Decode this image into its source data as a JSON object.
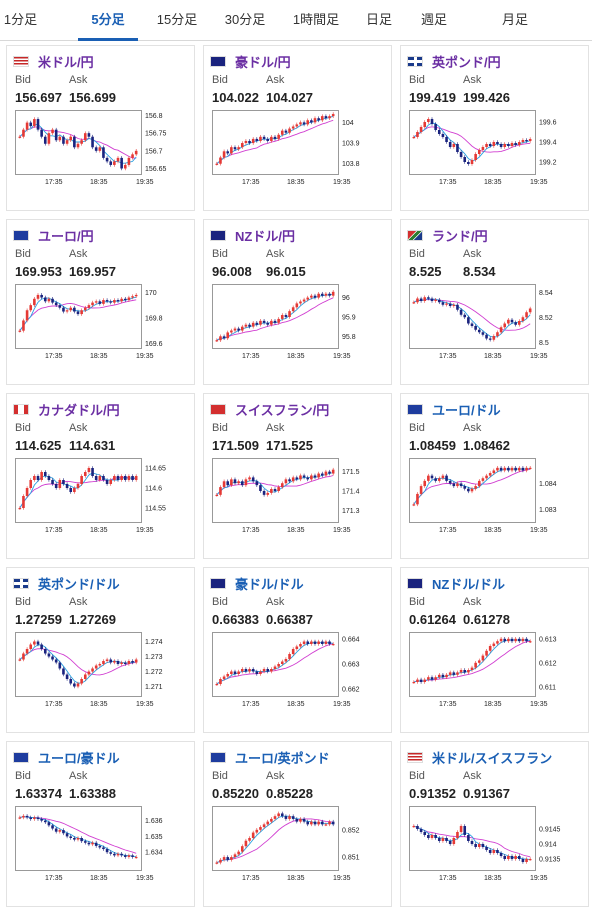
{
  "tabs": [
    {
      "label": "1分足",
      "active": false
    },
    {
      "label": "5分足",
      "active": true
    },
    {
      "label": "15分足",
      "active": false
    },
    {
      "label": "30分足",
      "active": false
    },
    {
      "label": "1時間足",
      "active": false
    },
    {
      "label": "日足",
      "active": false
    },
    {
      "label": "週足",
      "active": false
    },
    {
      "label": "月足",
      "active": false
    }
  ],
  "labels": {
    "bid": "Bid",
    "ask": "Ask"
  },
  "colors": {
    "up": "#e53935",
    "down": "#1a237e",
    "ma_short": "#29a0e0",
    "ma_long": "#d13fd1",
    "pair_purple": "#6b2fa3",
    "pair_blue": "#1a5fb4",
    "active_tab": "#1a5fb4"
  },
  "cards": [
    {
      "pair": "米ドル/円",
      "bid": "156.697",
      "ask": "156.699",
      "flag": "us-flag",
      "y_ticks": [
        "156.8",
        "156.75",
        "156.7",
        "156.65"
      ],
      "x_ticks": [
        "17:35",
        "18:35",
        "19:35"
      ],
      "chart_data": {
        "type": "candlestick",
        "ylim": [
          156.64,
          156.81
        ],
        "close": [
          156.74,
          156.76,
          156.78,
          156.77,
          156.79,
          156.76,
          156.74,
          156.72,
          156.75,
          156.76,
          156.73,
          156.74,
          156.72,
          156.73,
          156.74,
          156.71,
          156.72,
          156.73,
          156.75,
          156.74,
          156.71,
          156.7,
          156.71,
          156.68,
          156.67,
          156.66,
          156.67,
          156.68,
          156.65,
          156.66,
          156.68,
          156.69,
          156.7
        ]
      }
    },
    {
      "pair": "豪ドル/円",
      "bid": "104.022",
      "ask": "104.027",
      "flag": "au-flag",
      "y_ticks": [
        "104",
        "103.9",
        "103.8"
      ],
      "x_ticks": [
        "17:35",
        "18:35",
        "19:35"
      ],
      "chart_data": {
        "type": "candlestick",
        "ylim": [
          103.76,
          104.05
        ],
        "close": [
          103.8,
          103.83,
          103.86,
          103.85,
          103.88,
          103.87,
          103.88,
          103.9,
          103.91,
          103.9,
          103.92,
          103.91,
          103.93,
          103.92,
          103.91,
          103.93,
          103.92,
          103.94,
          103.96,
          103.95,
          103.97,
          103.98,
          103.99,
          104.0,
          103.99,
          104.01,
          104.0,
          104.02,
          104.01,
          104.03,
          104.02,
          104.03,
          104.04
        ]
      }
    },
    {
      "pair": "英ポンド/円",
      "bid": "199.419",
      "ask": "199.426",
      "flag": "gb-flag",
      "y_ticks": [
        "199.6",
        "199.4",
        "199.2"
      ],
      "x_ticks": [
        "17:35",
        "18:35",
        "19:35"
      ],
      "chart_data": {
        "type": "candlestick",
        "ylim": [
          199.1,
          199.7
        ],
        "close": [
          199.45,
          199.5,
          199.55,
          199.6,
          199.63,
          199.58,
          199.52,
          199.48,
          199.45,
          199.4,
          199.35,
          199.38,
          199.3,
          199.25,
          199.2,
          199.18,
          199.22,
          199.28,
          199.32,
          199.35,
          199.38,
          199.36,
          199.4,
          199.38,
          199.35,
          199.38,
          199.36,
          199.39,
          199.37,
          199.4,
          199.42,
          199.41,
          199.43
        ]
      }
    },
    {
      "pair": "ユーロ/円",
      "bid": "169.953",
      "ask": "169.957",
      "flag": "eu-flag",
      "y_ticks": [
        "170",
        "169.8",
        "169.6"
      ],
      "x_ticks": [
        "17:35",
        "18:35",
        "19:35"
      ],
      "chart_data": {
        "type": "candlestick",
        "ylim": [
          169.58,
          170.05
        ],
        "close": [
          169.7,
          169.78,
          169.86,
          169.9,
          169.95,
          169.98,
          169.96,
          169.93,
          169.95,
          169.92,
          169.9,
          169.88,
          169.85,
          169.86,
          169.88,
          169.85,
          169.83,
          169.86,
          169.88,
          169.9,
          169.92,
          169.93,
          169.91,
          169.94,
          169.93,
          169.92,
          169.94,
          169.93,
          169.95,
          169.94,
          169.96,
          169.97,
          169.98
        ]
      }
    },
    {
      "pair": "NZドル/円",
      "bid": "96.008",
      "ask": "96.015",
      "flag": "nz-flag",
      "y_ticks": [
        "96",
        "95.9",
        "95.8"
      ],
      "x_ticks": [
        "17:35",
        "18:35",
        "19:35"
      ],
      "chart_data": {
        "type": "candlestick",
        "ylim": [
          95.75,
          96.06
        ],
        "close": [
          95.78,
          95.8,
          95.79,
          95.82,
          95.83,
          95.84,
          95.83,
          95.85,
          95.86,
          95.85,
          95.87,
          95.86,
          95.88,
          95.87,
          95.86,
          95.88,
          95.87,
          95.89,
          95.91,
          95.9,
          95.93,
          95.95,
          95.97,
          95.98,
          95.99,
          96.0,
          96.01,
          96.0,
          96.02,
          96.01,
          96.02,
          96.01,
          96.03
        ]
      }
    },
    {
      "pair": "ランド/円",
      "bid": "8.525",
      "ask": "8.534",
      "flag": "za-flag",
      "y_ticks": [
        "8.54",
        "8.52",
        "8.5"
      ],
      "x_ticks": [
        "17:35",
        "18:35",
        "19:35"
      ],
      "chart_data": {
        "type": "candlestick",
        "ylim": [
          8.497,
          8.545
        ],
        "close": [
          8.532,
          8.535,
          8.533,
          8.536,
          8.535,
          8.533,
          8.534,
          8.532,
          8.53,
          8.531,
          8.529,
          8.53,
          8.526,
          8.522,
          8.52,
          8.515,
          8.513,
          8.51,
          8.508,
          8.506,
          8.503,
          8.502,
          8.505,
          8.508,
          8.512,
          8.515,
          8.518,
          8.516,
          8.514,
          8.517,
          8.52,
          8.524,
          8.527
        ]
      }
    },
    {
      "pair": "カナダドル/円",
      "bid": "114.625",
      "ask": "114.631",
      "flag": "ca-flag",
      "y_ticks": [
        "114.65",
        "114.6",
        "114.55"
      ],
      "x_ticks": [
        "17:35",
        "18:35",
        "19:35"
      ],
      "chart_data": {
        "type": "candlestick",
        "ylim": [
          114.52,
          114.67
        ],
        "close": [
          114.55,
          114.58,
          114.6,
          114.62,
          114.63,
          114.62,
          114.64,
          114.63,
          114.62,
          114.61,
          114.6,
          114.62,
          114.61,
          114.6,
          114.59,
          114.6,
          114.61,
          114.63,
          114.64,
          114.65,
          114.63,
          114.62,
          114.63,
          114.62,
          114.61,
          114.62,
          114.63,
          114.62,
          114.63,
          114.62,
          114.63,
          114.62,
          114.63
        ]
      }
    },
    {
      "pair": "スイスフラン/円",
      "bid": "171.509",
      "ask": "171.525",
      "flag": "ch-flag",
      "y_ticks": [
        "171.5",
        "171.4",
        "171.3"
      ],
      "x_ticks": [
        "17:35",
        "18:35",
        "19:35"
      ],
      "chart_data": {
        "type": "candlestick",
        "ylim": [
          171.25,
          171.56
        ],
        "close": [
          171.38,
          171.42,
          171.45,
          171.43,
          171.46,
          171.44,
          171.45,
          171.43,
          171.46,
          171.47,
          171.45,
          171.43,
          171.4,
          171.38,
          171.39,
          171.41,
          171.4,
          171.42,
          171.44,
          171.46,
          171.45,
          171.47,
          171.46,
          171.48,
          171.47,
          171.46,
          171.48,
          171.47,
          171.49,
          171.48,
          171.5,
          171.49,
          171.51
        ]
      }
    },
    {
      "pair": "ユーロ/ドル",
      "bid": "1.08459",
      "ask": "1.08462",
      "flag": "eu-us-flag",
      "y_ticks": [
        "1.084",
        "1.083"
      ],
      "x_ticks": [
        "17:35",
        "18:35",
        "19:35"
      ],
      "chart_data": {
        "type": "candlestick",
        "ylim": [
          1.0826,
          1.0849
        ],
        "close": [
          1.0832,
          1.0836,
          1.0839,
          1.0841,
          1.0843,
          1.0842,
          1.0841,
          1.0842,
          1.0843,
          1.0841,
          1.084,
          1.0839,
          1.084,
          1.0839,
          1.0838,
          1.0837,
          1.0838,
          1.0839,
          1.0841,
          1.0842,
          1.0843,
          1.0844,
          1.0845,
          1.0846,
          1.0845,
          1.0846,
          1.0845,
          1.0846,
          1.0845,
          1.0846,
          1.0845,
          1.0846,
          1.0846
        ]
      }
    },
    {
      "pair": "英ポンド/ドル",
      "bid": "1.27259",
      "ask": "1.27269",
      "flag": "gb-us-flag",
      "y_ticks": [
        "1.274",
        "1.273",
        "1.272",
        "1.271"
      ],
      "x_ticks": [
        "17:35",
        "18:35",
        "19:35"
      ],
      "chart_data": {
        "type": "candlestick",
        "ylim": [
          1.2705,
          1.2745
        ],
        "close": [
          1.2728,
          1.2732,
          1.2735,
          1.2738,
          1.274,
          1.2738,
          1.2735,
          1.2732,
          1.273,
          1.2728,
          1.2726,
          1.2722,
          1.2718,
          1.2715,
          1.2712,
          1.271,
          1.2712,
          1.2715,
          1.2718,
          1.272,
          1.2722,
          1.2724,
          1.2725,
          1.2727,
          1.2728,
          1.2726,
          1.2727,
          1.2725,
          1.2726,
          1.2725,
          1.2727,
          1.2726,
          1.2728
        ]
      }
    },
    {
      "pair": "豪ドル/ドル",
      "bid": "0.66383",
      "ask": "0.66387",
      "flag": "au-us-flag",
      "y_ticks": [
        "0.664",
        "0.663",
        "0.662"
      ],
      "x_ticks": [
        "17:35",
        "18:35",
        "19:35"
      ],
      "chart_data": {
        "type": "candlestick",
        "ylim": [
          0.6618,
          0.6642
        ],
        "close": [
          0.6622,
          0.6624,
          0.6625,
          0.6626,
          0.6627,
          0.6626,
          0.6627,
          0.6628,
          0.6627,
          0.6628,
          0.6627,
          0.6626,
          0.6627,
          0.6628,
          0.6627,
          0.6628,
          0.6629,
          0.663,
          0.6631,
          0.6632,
          0.6634,
          0.6636,
          0.6637,
          0.6638,
          0.6639,
          0.6638,
          0.6639,
          0.6638,
          0.6639,
          0.6638,
          0.6639,
          0.6638,
          0.6638
        ]
      }
    },
    {
      "pair": "NZドル/ドル",
      "bid": "0.61264",
      "ask": "0.61278",
      "flag": "nz-us-flag",
      "y_ticks": [
        "0.613",
        "0.612",
        "0.611"
      ],
      "x_ticks": [
        "17:35",
        "18:35",
        "19:35"
      ],
      "chart_data": {
        "type": "candlestick",
        "ylim": [
          0.6107,
          0.6132
        ],
        "close": [
          0.6112,
          0.6113,
          0.6112,
          0.6113,
          0.6114,
          0.6113,
          0.6114,
          0.6115,
          0.6114,
          0.6115,
          0.6116,
          0.6115,
          0.6116,
          0.6117,
          0.6116,
          0.6117,
          0.6118,
          0.612,
          0.6121,
          0.6123,
          0.6125,
          0.6127,
          0.6128,
          0.6129,
          0.613,
          0.6129,
          0.613,
          0.6129,
          0.613,
          0.6129,
          0.613,
          0.6129,
          0.6129
        ]
      }
    },
    {
      "pair": "ユーロ/豪ドル",
      "bid": "1.63374",
      "ask": "1.63388",
      "flag": "eu-au-flag",
      "y_ticks": [
        "1.636",
        "1.635",
        "1.634"
      ],
      "x_ticks": [
        "17:35",
        "18:35",
        "19:35"
      ],
      "chart_data": {
        "type": "candlestick",
        "ylim": [
          1.633,
          1.6368
        ],
        "close": [
          1.6362,
          1.6363,
          1.6362,
          1.6361,
          1.6362,
          1.6361,
          1.636,
          1.6359,
          1.6357,
          1.6355,
          1.6353,
          1.6354,
          1.6352,
          1.635,
          1.6349,
          1.6348,
          1.6349,
          1.6347,
          1.6346,
          1.6345,
          1.6346,
          1.6344,
          1.6343,
          1.6342,
          1.634,
          1.6339,
          1.6338,
          1.6339,
          1.6338,
          1.6337,
          1.6338,
          1.6337,
          1.6337
        ]
      }
    },
    {
      "pair": "ユーロ/英ポンド",
      "bid": "0.85220",
      "ask": "0.85228",
      "flag": "eu-gb-flag",
      "y_ticks": [
        "0.852",
        "0.851"
      ],
      "x_ticks": [
        "17:35",
        "18:35",
        "19:35"
      ],
      "chart_data": {
        "type": "candlestick",
        "ylim": [
          0.8506,
          0.8528
        ],
        "close": [
          0.8508,
          0.8509,
          0.851,
          0.8509,
          0.851,
          0.8511,
          0.8512,
          0.8514,
          0.8516,
          0.8517,
          0.8519,
          0.852,
          0.8521,
          0.8522,
          0.8523,
          0.8524,
          0.8525,
          0.8526,
          0.8525,
          0.8524,
          0.8525,
          0.8524,
          0.8523,
          0.8524,
          0.8523,
          0.8522,
          0.8523,
          0.8522,
          0.8523,
          0.8522,
          0.8522,
          0.8523,
          0.8522
        ]
      }
    },
    {
      "pair": "米ドル/スイスフラン",
      "bid": "0.91352",
      "ask": "0.91367",
      "flag": "us-ch-flag",
      "y_ticks": [
        "0.9145",
        "0.914",
        "0.9135"
      ],
      "x_ticks": [
        "17:35",
        "18:35",
        "19:35"
      ],
      "chart_data": {
        "type": "candlestick",
        "ylim": [
          0.9132,
          0.9152
        ],
        "close": [
          0.9146,
          0.9145,
          0.9144,
          0.9143,
          0.9142,
          0.9143,
          0.9142,
          0.9141,
          0.9142,
          0.9141,
          0.914,
          0.9142,
          0.9144,
          0.9146,
          0.9143,
          0.9141,
          0.914,
          0.9139,
          0.914,
          0.9139,
          0.9138,
          0.9137,
          0.9138,
          0.9137,
          0.9136,
          0.9135,
          0.9136,
          0.9135,
          0.9136,
          0.9135,
          0.9134,
          0.9135,
          0.9135
        ]
      }
    }
  ]
}
